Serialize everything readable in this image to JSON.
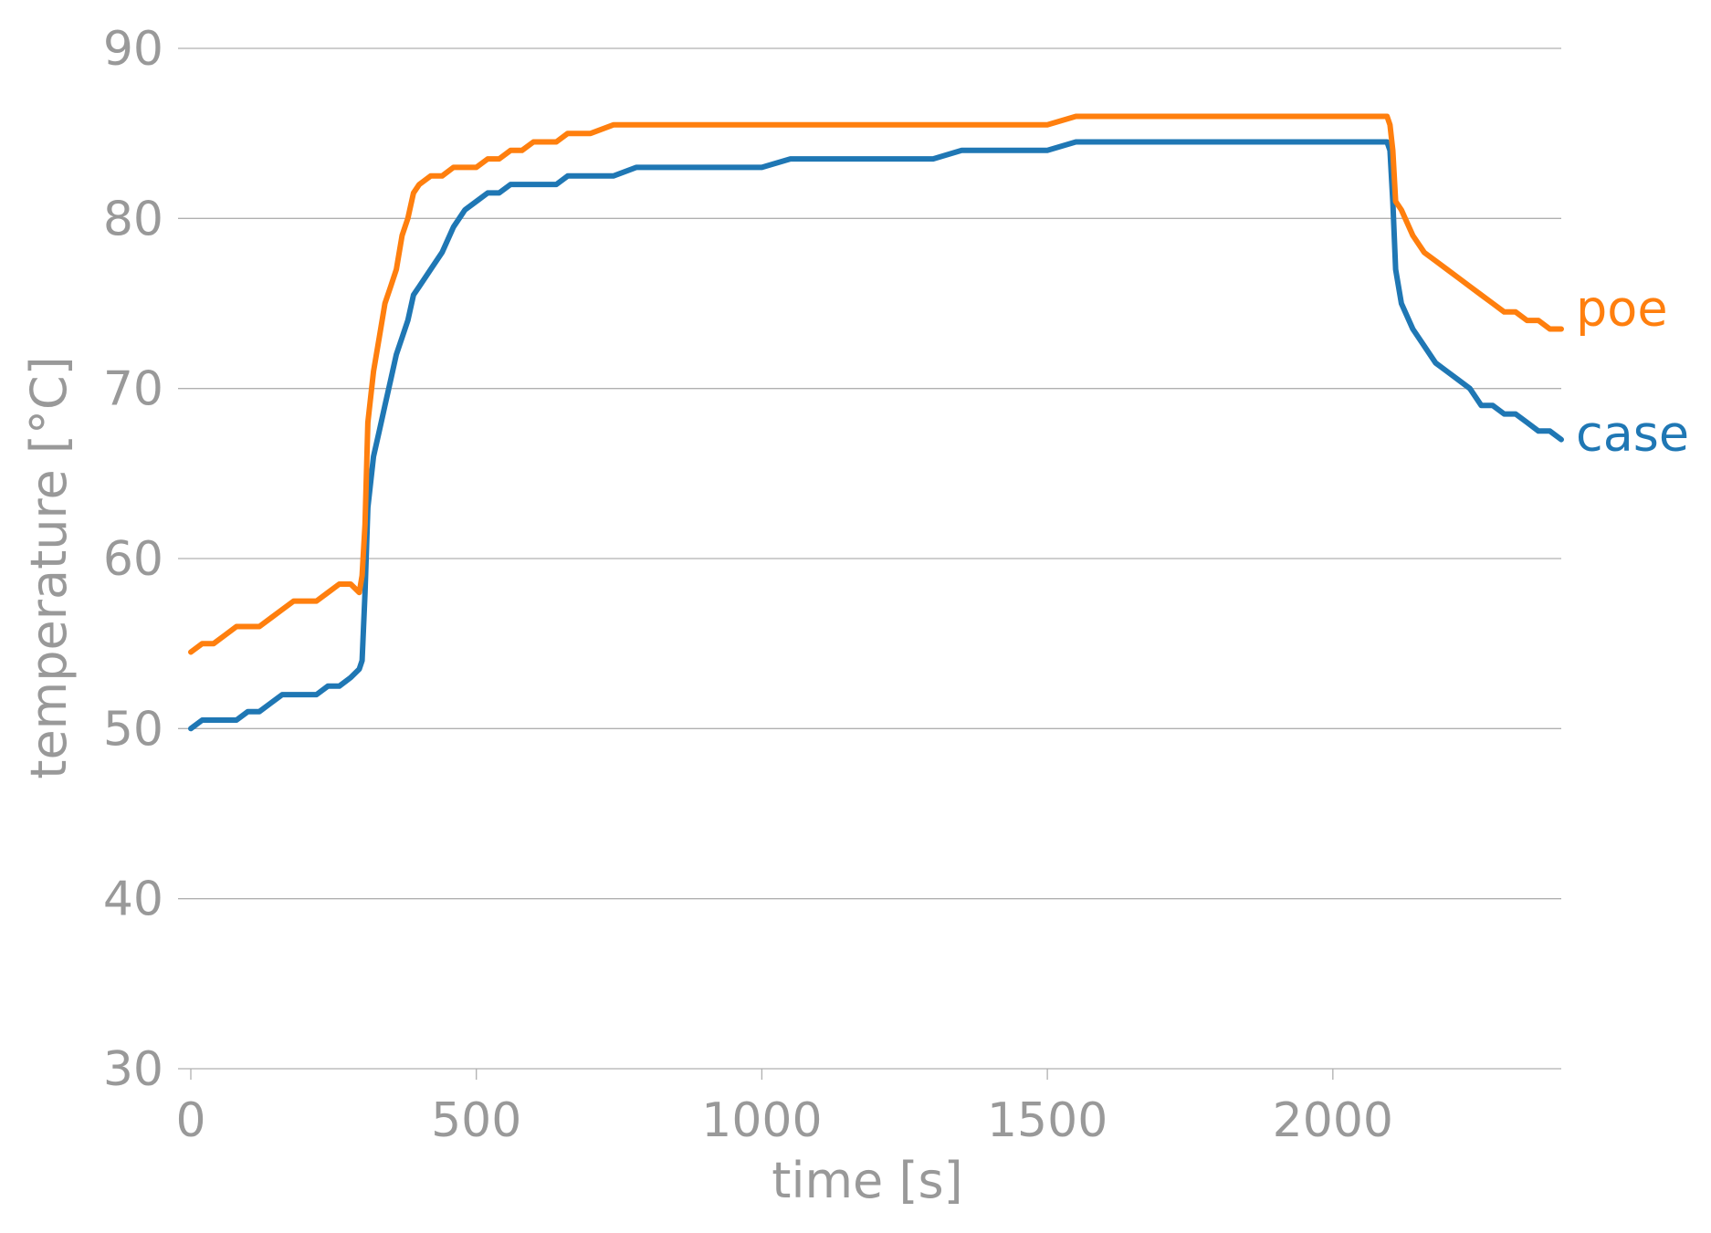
{
  "chart_data": {
    "type": "line",
    "title": "",
    "xlabel": "time [s]",
    "ylabel": "temperature [°C]",
    "xlim": [
      0,
      2400
    ],
    "ylim": [
      30,
      90
    ],
    "xticks": [
      0,
      500,
      1000,
      1500,
      2000
    ],
    "yticks": [
      30,
      40,
      50,
      60,
      70,
      80,
      90
    ],
    "grid": "horizontal",
    "legend": "inline labels at right end of lines",
    "colors": {
      "poe": "#ff7f0e",
      "case": "#1f77b4",
      "text": "#999999",
      "grid": "#b0b0b0"
    },
    "series": [
      {
        "name": "poe",
        "color": "#ff7f0e",
        "x": [
          0,
          20,
          40,
          60,
          80,
          100,
          120,
          140,
          160,
          180,
          200,
          220,
          240,
          260,
          280,
          295,
          300,
          305,
          310,
          320,
          330,
          340,
          350,
          360,
          370,
          380,
          390,
          400,
          420,
          440,
          460,
          480,
          500,
          520,
          540,
          560,
          580,
          600,
          620,
          640,
          660,
          680,
          700,
          740,
          780,
          820,
          860,
          900,
          950,
          1000,
          1050,
          1100,
          1150,
          1200,
          1250,
          1300,
          1350,
          1400,
          1450,
          1500,
          1550,
          1600,
          1650,
          1700,
          1750,
          1800,
          1850,
          1900,
          1950,
          2000,
          2050,
          2080,
          2095,
          2100,
          2105,
          2110,
          2120,
          2140,
          2160,
          2180,
          2200,
          2220,
          2240,
          2260,
          2280,
          2300,
          2320,
          2340,
          2360,
          2380,
          2400
        ],
        "values": [
          54.5,
          55,
          55,
          55.5,
          56,
          56,
          56,
          56.5,
          57,
          57.5,
          57.5,
          57.5,
          58,
          58.5,
          58.5,
          58,
          59,
          62,
          68,
          71,
          73,
          75,
          76,
          77,
          79,
          80,
          81.5,
          82,
          82.5,
          82.5,
          83,
          83,
          83,
          83.5,
          83.5,
          84,
          84,
          84.5,
          84.5,
          84.5,
          85,
          85,
          85,
          85.5,
          85.5,
          85.5,
          85.5,
          85.5,
          85.5,
          85.5,
          85.5,
          85.5,
          85.5,
          85.5,
          85.5,
          85.5,
          85.5,
          85.5,
          85.5,
          85.5,
          86,
          86,
          86,
          86,
          86,
          86,
          86,
          86,
          86,
          86,
          86,
          86,
          86,
          85.5,
          84,
          81,
          80.5,
          79,
          78,
          77.5,
          77,
          76.5,
          76,
          75.5,
          75,
          74.5,
          74.5,
          74,
          74,
          73.5,
          73.5
        ]
      },
      {
        "name": "case",
        "color": "#1f77b4",
        "x": [
          0,
          20,
          40,
          60,
          80,
          100,
          120,
          140,
          160,
          180,
          200,
          220,
          240,
          260,
          280,
          295,
          300,
          305,
          310,
          320,
          330,
          340,
          350,
          360,
          370,
          380,
          390,
          400,
          420,
          440,
          460,
          480,
          500,
          520,
          540,
          560,
          580,
          600,
          620,
          640,
          660,
          680,
          700,
          740,
          780,
          820,
          860,
          900,
          950,
          1000,
          1050,
          1100,
          1150,
          1200,
          1250,
          1300,
          1350,
          1400,
          1450,
          1500,
          1550,
          1600,
          1650,
          1700,
          1750,
          1800,
          1850,
          1900,
          1950,
          2000,
          2050,
          2080,
          2095,
          2100,
          2105,
          2110,
          2120,
          2140,
          2160,
          2180,
          2200,
          2220,
          2240,
          2260,
          2280,
          2300,
          2320,
          2340,
          2360,
          2380,
          2400
        ],
        "values": [
          50,
          50.5,
          50.5,
          50.5,
          50.5,
          51,
          51,
          51.5,
          52,
          52,
          52,
          52,
          52.5,
          52.5,
          53,
          53.5,
          54,
          58,
          63,
          66,
          67.5,
          69,
          70.5,
          72,
          73,
          74,
          75.5,
          76,
          77,
          78,
          79.5,
          80.5,
          81,
          81.5,
          81.5,
          82,
          82,
          82,
          82,
          82,
          82.5,
          82.5,
          82.5,
          82.5,
          83,
          83,
          83,
          83,
          83,
          83,
          83.5,
          83.5,
          83.5,
          83.5,
          83.5,
          83.5,
          84,
          84,
          84,
          84,
          84.5,
          84.5,
          84.5,
          84.5,
          84.5,
          84.5,
          84.5,
          84.5,
          84.5,
          84.5,
          84.5,
          84.5,
          84.5,
          84,
          81,
          77,
          75,
          73.5,
          72.5,
          71.5,
          71,
          70.5,
          70,
          69,
          69,
          68.5,
          68.5,
          68,
          67.5,
          67.5,
          67
        ]
      }
    ]
  }
}
